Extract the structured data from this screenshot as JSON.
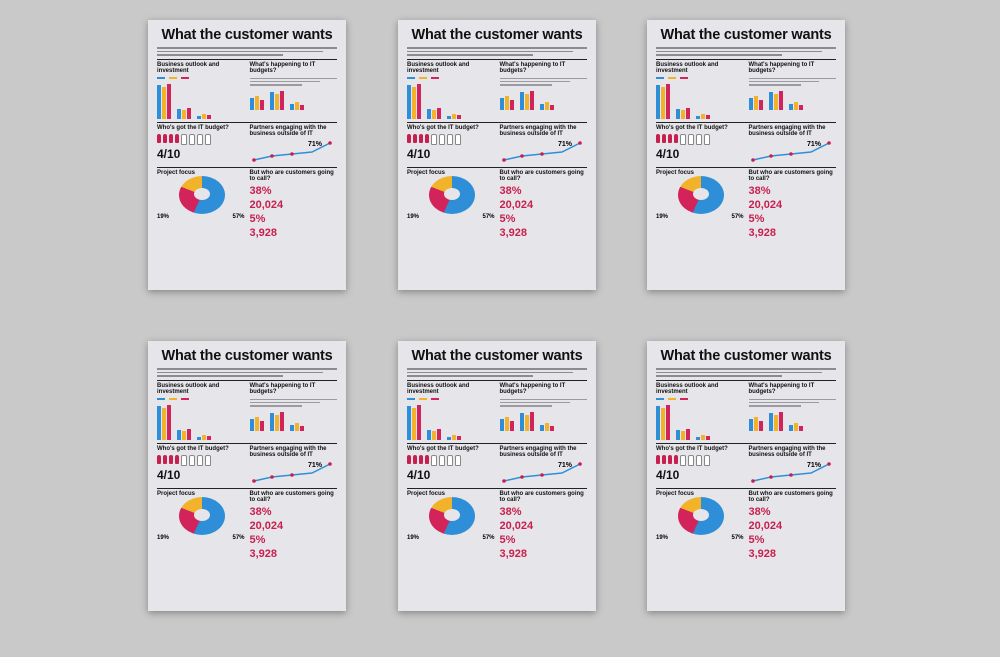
{
  "scene": {
    "background": "#c9c9c9",
    "poster_count": 6,
    "posters": [
      {
        "title": "What the customer wants"
      },
      {
        "title": "What the customer wants"
      },
      {
        "title": "What the customer wants"
      },
      {
        "title": "What the customer wants"
      },
      {
        "title": "What the customer wants"
      },
      {
        "title": "What the customer wants"
      }
    ]
  },
  "sections": {
    "business": "Business outlook and investment",
    "it_budgets": "What's happening to IT budgets?",
    "who_budget": "Who's got the IT budget?",
    "partners": "Partners engaging with the business outside of IT",
    "customers": "But who are customers going to call?",
    "project_focus": "Project focus"
  },
  "stats": {
    "ratio": "4/10",
    "line_peak": "71%",
    "stat1": "38%",
    "stat2": "20,024",
    "stat3": "5%",
    "stat4": "3,928",
    "donut_main": "57%",
    "donut_left_top": "19%",
    "donut_left_bottom": "24%"
  },
  "colors": {
    "blue": "#2e8fd8",
    "yellow": "#f2b32a",
    "red": "#d2245a",
    "poster_bg": "#e6e6ea"
  }
}
